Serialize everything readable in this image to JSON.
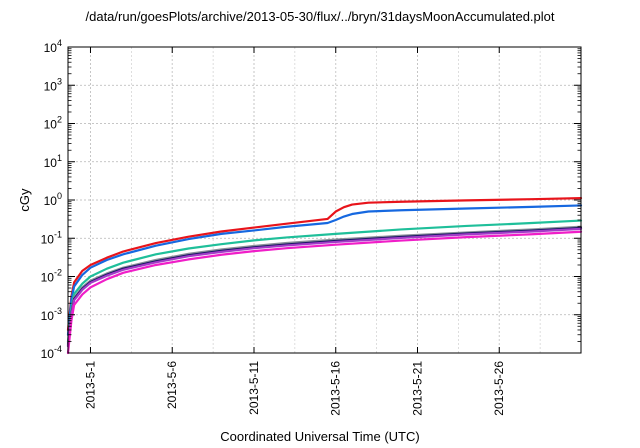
{
  "chart_data": {
    "type": "line",
    "title": "/data/run/goesPlots/archive/2013-05-30/flux/../bryn/31daysMoonAccumulated.plot",
    "xlabel": "Coordinated Universal Time (UTC)",
    "ylabel": "cGy",
    "yscale": "log",
    "ylim": [
      0.0001,
      10000
    ],
    "xlim": [
      "2013-04-29T15:00",
      "2013-05-31T00:00"
    ],
    "grid": true,
    "x_ticks": [
      "2013-5-1",
      "2013-5-6",
      "2013-5-11",
      "2013-5-16",
      "2013-5-21",
      "2013-5-26"
    ],
    "y_ticks": [
      {
        "value": 0.0001,
        "mantissa": "10",
        "exp": "-4"
      },
      {
        "value": 0.001,
        "mantissa": "10",
        "exp": "-3"
      },
      {
        "value": 0.01,
        "mantissa": "10",
        "exp": "-2"
      },
      {
        "value": 0.1,
        "mantissa": "10",
        "exp": "-1"
      },
      {
        "value": 1,
        "mantissa": "10",
        "exp": "0"
      },
      {
        "value": 10,
        "mantissa": "10",
        "exp": "1"
      },
      {
        "value": 100,
        "mantissa": "10",
        "exp": "2"
      },
      {
        "value": 1000,
        "mantissa": "10",
        "exp": "3"
      },
      {
        "value": 10000,
        "mantissa": "10",
        "exp": "4"
      }
    ],
    "series": [
      {
        "color": "#e8141b",
        "x": [
          "2013-04-29T15:00",
          "2013-04-29T20:00",
          "2013-04-30T00:00",
          "2013-04-30T12:00",
          "2013-05-01T00:00",
          "2013-05-02T00:00",
          "2013-05-03T00:00",
          "2013-05-05T00:00",
          "2013-05-07T00:00",
          "2013-05-09T00:00",
          "2013-05-11T00:00",
          "2013-05-13T00:00",
          "2013-05-15T12:00",
          "2013-05-16T00:00",
          "2013-05-16T12:00",
          "2013-05-17T00:00",
          "2013-05-18T00:00",
          "2013-05-20T00:00",
          "2013-05-24T00:00",
          "2013-05-28T00:00",
          "2013-05-31T00:00"
        ],
        "y": [
          0.0004,
          0.003,
          0.007,
          0.014,
          0.02,
          0.031,
          0.045,
          0.075,
          0.11,
          0.15,
          0.19,
          0.24,
          0.32,
          0.5,
          0.65,
          0.76,
          0.85,
          0.9,
          0.98,
          1.05,
          1.12
        ]
      },
      {
        "color": "#1668e0",
        "x": [
          "2013-04-29T15:00",
          "2013-04-29T20:00",
          "2013-04-30T00:00",
          "2013-04-30T12:00",
          "2013-05-01T00:00",
          "2013-05-02T00:00",
          "2013-05-03T00:00",
          "2013-05-05T00:00",
          "2013-05-07T00:00",
          "2013-05-09T00:00",
          "2013-05-11T00:00",
          "2013-05-13T00:00",
          "2013-05-15T12:00",
          "2013-05-16T00:00",
          "2013-05-16T12:00",
          "2013-05-17T00:00",
          "2013-05-18T00:00",
          "2013-05-20T00:00",
          "2013-05-24T00:00",
          "2013-05-28T00:00",
          "2013-05-31T00:00"
        ],
        "y": [
          0.0003,
          0.0025,
          0.0055,
          0.011,
          0.017,
          0.027,
          0.038,
          0.064,
          0.095,
          0.13,
          0.16,
          0.2,
          0.25,
          0.3,
          0.37,
          0.43,
          0.5,
          0.54,
          0.6,
          0.66,
          0.72
        ]
      },
      {
        "color": "#1fbf9a",
        "x": [
          "2013-04-29T15:00",
          "2013-04-29T20:00",
          "2013-04-30T00:00",
          "2013-04-30T12:00",
          "2013-05-01T00:00",
          "2013-05-02T00:00",
          "2013-05-03T00:00",
          "2013-05-05T00:00",
          "2013-05-07T00:00",
          "2013-05-09T00:00",
          "2013-05-11T00:00",
          "2013-05-13T00:00",
          "2013-05-16T00:00",
          "2013-05-20T00:00",
          "2013-05-24T00:00",
          "2013-05-28T00:00",
          "2013-05-31T00:00"
        ],
        "y": [
          0.0002,
          0.0015,
          0.0035,
          0.0065,
          0.01,
          0.016,
          0.023,
          0.038,
          0.054,
          0.07,
          0.088,
          0.105,
          0.13,
          0.17,
          0.21,
          0.25,
          0.29
        ]
      },
      {
        "color": "#8a8f98",
        "x": [
          "2013-04-29T15:00",
          "2013-04-29T20:00",
          "2013-04-30T00:00",
          "2013-04-30T12:00",
          "2013-05-01T00:00",
          "2013-05-02T00:00",
          "2013-05-03T00:00",
          "2013-05-05T00:00",
          "2013-05-07T00:00",
          "2013-05-09T00:00",
          "2013-05-11T00:00",
          "2013-05-13T00:00",
          "2013-05-16T00:00",
          "2013-05-20T00:00",
          "2013-05-24T00:00",
          "2013-05-28T00:00",
          "2013-05-31T00:00"
        ],
        "y": [
          0.00018,
          0.0012,
          0.0028,
          0.0052,
          0.0078,
          0.012,
          0.017,
          0.027,
          0.039,
          0.051,
          0.063,
          0.075,
          0.092,
          0.116,
          0.142,
          0.17,
          0.2
        ]
      },
      {
        "color": "#1a1466",
        "x": [
          "2013-04-29T15:00",
          "2013-04-29T20:00",
          "2013-04-30T00:00",
          "2013-04-30T12:00",
          "2013-05-01T00:00",
          "2013-05-02T00:00",
          "2013-05-03T00:00",
          "2013-05-05T00:00",
          "2013-05-07T00:00",
          "2013-05-09T00:00",
          "2013-05-11T00:00",
          "2013-05-13T00:00",
          "2013-05-16T00:00",
          "2013-05-20T00:00",
          "2013-05-24T00:00",
          "2013-05-28T00:00",
          "2013-05-31T00:00"
        ],
        "y": [
          0.00016,
          0.0011,
          0.0026,
          0.0048,
          0.0072,
          0.0112,
          0.016,
          0.025,
          0.036,
          0.047,
          0.058,
          0.069,
          0.085,
          0.108,
          0.133,
          0.158,
          0.185
        ]
      },
      {
        "color": "#a23cc8",
        "x": [
          "2013-04-29T15:00",
          "2013-04-29T20:00",
          "2013-04-30T00:00",
          "2013-04-30T12:00",
          "2013-05-01T00:00",
          "2013-05-02T00:00",
          "2013-05-03T00:00",
          "2013-05-05T00:00",
          "2013-05-07T00:00",
          "2013-05-09T00:00",
          "2013-05-11T00:00",
          "2013-05-13T00:00",
          "2013-05-16T00:00",
          "2013-05-20T00:00",
          "2013-05-24T00:00",
          "2013-05-28T00:00",
          "2013-05-31T00:00"
        ],
        "y": [
          0.00015,
          0.001,
          0.0024,
          0.0045,
          0.0068,
          0.0105,
          0.015,
          0.0235,
          0.034,
          0.044,
          0.055,
          0.065,
          0.08,
          0.102,
          0.126,
          0.15,
          0.176
        ]
      },
      {
        "color": "#f01ec8",
        "x": [
          "2013-04-29T15:00",
          "2013-04-29T20:00",
          "2013-04-30T00:00",
          "2013-04-30T12:00",
          "2013-05-01T00:00",
          "2013-05-02T00:00",
          "2013-05-03T00:00",
          "2013-05-05T00:00",
          "2013-05-07T00:00",
          "2013-05-09T00:00",
          "2013-05-11T00:00",
          "2013-05-13T00:00",
          "2013-05-16T00:00",
          "2013-05-20T00:00",
          "2013-05-24T00:00",
          "2013-05-28T00:00",
          "2013-05-31T00:00"
        ],
        "y": [
          0.0001,
          0.0007,
          0.0018,
          0.0034,
          0.0052,
          0.0085,
          0.0125,
          0.02,
          0.028,
          0.037,
          0.046,
          0.055,
          0.068,
          0.087,
          0.107,
          0.127,
          0.148
        ]
      }
    ]
  }
}
